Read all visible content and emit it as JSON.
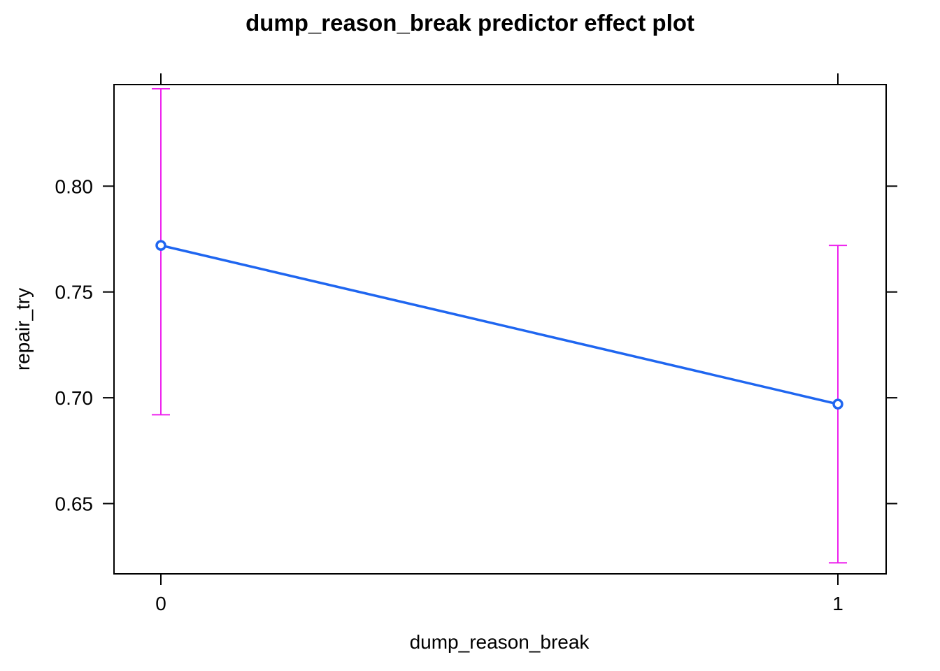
{
  "chart_data": {
    "type": "line",
    "title": "dump_reason_break predictor effect plot",
    "xlabel": "dump_reason_break",
    "ylabel": "repair_try",
    "categories": [
      "0",
      "1"
    ],
    "y_ticks": [
      "0.65",
      "0.70",
      "0.75",
      "0.80"
    ],
    "ylim": [
      0.6168,
      0.848
    ],
    "grid": false,
    "series": [
      {
        "values": [
          0.772,
          0.697
        ],
        "lower": [
          0.692,
          0.622
        ],
        "upper": [
          0.846,
          0.772
        ]
      }
    ],
    "colors": {
      "line": "#1f66f0",
      "error_bars": "#ee22ee",
      "axes": "#000000"
    }
  }
}
